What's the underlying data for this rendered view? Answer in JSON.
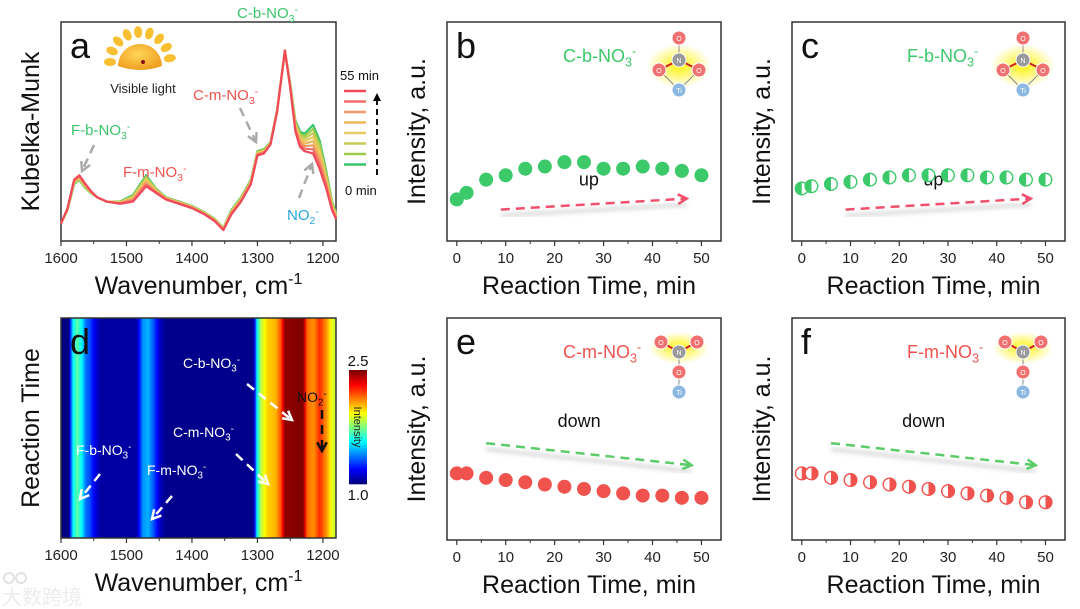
{
  "colors": {
    "green": "#3cc96a",
    "red": "#f0534e",
    "pink_arrow": "#f0506e",
    "blue_label": "#2aa5e0",
    "molecule_O": "#f07070",
    "molecule_N": "#9a9a9a",
    "molecule_Ti": "#8ab8e0",
    "glow": "#fff200"
  },
  "chart_data": [
    {
      "panel": "a",
      "type": "line",
      "letter": "a",
      "xlabel": {
        "text": "Wavenumber, cm",
        "sup": "-1"
      },
      "ylabel": "Kubelka-Munk",
      "xlim": [
        1600,
        1180
      ],
      "ylim": [
        0,
        1
      ],
      "xticks": [
        1600,
        1500,
        1400,
        1300,
        1200
      ],
      "inset_label": "Visible light",
      "legend": {
        "top": "55 min",
        "bottom": "0 min",
        "placement": "right",
        "series": [
          {
            "name": "55 min",
            "color": "#ef4a5a"
          },
          {
            "name": "",
            "color": "#f2706a"
          },
          {
            "name": "",
            "color": "#f29a62"
          },
          {
            "name": "",
            "color": "#f0b85a"
          },
          {
            "name": "",
            "color": "#e9cc60"
          },
          {
            "name": "",
            "color": "#c9cc55"
          },
          {
            "name": "",
            "color": "#9ccc4a"
          },
          {
            "name": "0 min",
            "color": "#3cc46a"
          }
        ]
      },
      "spectrum_0min": [
        [
          1600,
          0.08
        ],
        [
          1590,
          0.14
        ],
        [
          1580,
          0.26
        ],
        [
          1572,
          0.28
        ],
        [
          1565,
          0.25
        ],
        [
          1555,
          0.22
        ],
        [
          1545,
          0.2
        ],
        [
          1530,
          0.18
        ],
        [
          1510,
          0.18
        ],
        [
          1490,
          0.21
        ],
        [
          1470,
          0.3
        ],
        [
          1455,
          0.24
        ],
        [
          1440,
          0.2
        ],
        [
          1420,
          0.18
        ],
        [
          1400,
          0.16
        ],
        [
          1380,
          0.13
        ],
        [
          1365,
          0.1
        ],
        [
          1352,
          0.06
        ],
        [
          1340,
          0.14
        ],
        [
          1325,
          0.2
        ],
        [
          1310,
          0.28
        ],
        [
          1300,
          0.41
        ],
        [
          1290,
          0.42
        ],
        [
          1280,
          0.45
        ],
        [
          1270,
          0.6
        ],
        [
          1258,
          0.87
        ],
        [
          1250,
          0.72
        ],
        [
          1242,
          0.55
        ],
        [
          1235,
          0.5
        ],
        [
          1228,
          0.49
        ],
        [
          1215,
          0.53
        ],
        [
          1205,
          0.46
        ],
        [
          1195,
          0.32
        ],
        [
          1186,
          0.18
        ],
        [
          1180,
          0.13
        ]
      ],
      "spectrum_55min": [
        [
          1600,
          0.08
        ],
        [
          1590,
          0.15
        ],
        [
          1580,
          0.28
        ],
        [
          1572,
          0.3
        ],
        [
          1565,
          0.27
        ],
        [
          1555,
          0.23
        ],
        [
          1545,
          0.2
        ],
        [
          1530,
          0.18
        ],
        [
          1510,
          0.17
        ],
        [
          1490,
          0.18
        ],
        [
          1470,
          0.25
        ],
        [
          1455,
          0.22
        ],
        [
          1440,
          0.19
        ],
        [
          1420,
          0.17
        ],
        [
          1400,
          0.15
        ],
        [
          1380,
          0.12
        ],
        [
          1365,
          0.09
        ],
        [
          1352,
          0.05
        ],
        [
          1340,
          0.12
        ],
        [
          1325,
          0.18
        ],
        [
          1310,
          0.26
        ],
        [
          1300,
          0.39
        ],
        [
          1290,
          0.4
        ],
        [
          1280,
          0.44
        ],
        [
          1270,
          0.59
        ],
        [
          1258,
          0.87
        ],
        [
          1250,
          0.7
        ],
        [
          1242,
          0.5
        ],
        [
          1235,
          0.43
        ],
        [
          1228,
          0.41
        ],
        [
          1215,
          0.4
        ],
        [
          1205,
          0.33
        ],
        [
          1195,
          0.24
        ],
        [
          1186,
          0.14
        ],
        [
          1180,
          0.1
        ]
      ],
      "annotations": [
        {
          "label": {
            "base": "C-b-NO",
            "sub": "3",
            "sup": "-"
          },
          "color": "#3cc46a"
        },
        {
          "label": {
            "base": "C-m-NO",
            "sub": "3",
            "sup": "-"
          },
          "color": "#f0534e"
        },
        {
          "label": {
            "base": "F-b-NO",
            "sub": "3",
            "sup": "-"
          },
          "color": "#3cc46a"
        },
        {
          "label": {
            "base": "F-m-NO",
            "sub": "3",
            "sup": "-"
          },
          "color": "#f0534e"
        },
        {
          "label": {
            "base": "NO",
            "sub": "2",
            "sup": "-"
          },
          "color": "#2aa5e0"
        }
      ]
    },
    {
      "panel": "b",
      "type": "scatter",
      "letter": "b",
      "marker": "filled",
      "color": "#3cc96a",
      "species": {
        "base": "C-b-NO",
        "sub": "3",
        "sup": "-"
      },
      "trend": "up",
      "trend_color": "#f0506e",
      "molecule": "bidentate",
      "xlabel": "Reaction Time, min",
      "ylabel": "Intensity, a.u.",
      "xlim": [
        -2,
        54
      ],
      "ylim": [
        0,
        1
      ],
      "xticks": [
        0,
        10,
        20,
        30,
        40,
        50
      ],
      "x": [
        0,
        2,
        6,
        10,
        14,
        18,
        22,
        26,
        30,
        34,
        38,
        42,
        46,
        50
      ],
      "y": [
        0.19,
        0.22,
        0.28,
        0.3,
        0.33,
        0.34,
        0.36,
        0.36,
        0.33,
        0.33,
        0.34,
        0.33,
        0.32,
        0.3
      ]
    },
    {
      "panel": "c",
      "type": "scatter",
      "letter": "c",
      "marker": "half-left",
      "color": "#3cc96a",
      "species": {
        "base": "F-b-NO",
        "sub": "3",
        "sup": "-"
      },
      "trend": "up",
      "trend_color": "#f0506e",
      "molecule": "bidentate",
      "xlabel": "Reaction Time, min",
      "ylabel": "Intensity, a.u.",
      "xlim": [
        -2,
        54
      ],
      "ylim": [
        0,
        1
      ],
      "xticks": [
        0,
        10,
        20,
        30,
        40,
        50
      ],
      "x": [
        0,
        2,
        6,
        10,
        14,
        18,
        22,
        26,
        30,
        34,
        38,
        42,
        46,
        50
      ],
      "y": [
        0.24,
        0.25,
        0.26,
        0.27,
        0.28,
        0.29,
        0.3,
        0.3,
        0.3,
        0.3,
        0.29,
        0.29,
        0.28,
        0.28
      ]
    },
    {
      "panel": "d",
      "type": "heatmap",
      "letter": "d",
      "xlabel": {
        "text": "Wavenumber, cm",
        "sup": "-1"
      },
      "ylabel": "Reaction Time",
      "xlim": [
        1600,
        1180
      ],
      "xticks": [
        1600,
        1500,
        1400,
        1300,
        1200
      ],
      "colorbar": {
        "label": "Intensity",
        "min": 1.0,
        "max": 2.5,
        "min_label": "1.0",
        "max_label": "2.5",
        "colormap": "jet"
      },
      "intensity_profile": [
        [
          1600,
          1.0
        ],
        [
          1588,
          1.0
        ],
        [
          1582,
          1.55
        ],
        [
          1575,
          1.7
        ],
        [
          1568,
          1.55
        ],
        [
          1562,
          1.35
        ],
        [
          1556,
          1.3
        ],
        [
          1548,
          1.15
        ],
        [
          1540,
          1.05
        ],
        [
          1485,
          1.05
        ],
        [
          1475,
          1.4
        ],
        [
          1467,
          1.45
        ],
        [
          1458,
          1.3
        ],
        [
          1448,
          1.08
        ],
        [
          1440,
          1.02
        ],
        [
          1306,
          1.02
        ],
        [
          1300,
          1.6
        ],
        [
          1294,
          1.85
        ],
        [
          1285,
          2.0
        ],
        [
          1272,
          2.05
        ],
        [
          1264,
          2.2
        ],
        [
          1258,
          2.48
        ],
        [
          1230,
          2.5
        ],
        [
          1224,
          2.15
        ],
        [
          1214,
          2.1
        ],
        [
          1205,
          2.25
        ],
        [
          1195,
          2.1
        ],
        [
          1186,
          1.9
        ],
        [
          1180,
          1.85
        ]
      ],
      "annotations": [
        {
          "label": {
            "base": "C-b-NO",
            "sub": "3",
            "sup": "-"
          }
        },
        {
          "label": {
            "base": "C-m-NO",
            "sub": "3",
            "sup": "-"
          }
        },
        {
          "label": {
            "base": "F-b-NO",
            "sub": "3",
            "sup": "-"
          }
        },
        {
          "label": {
            "base": "F-m-NO",
            "sub": "3",
            "sup": "-"
          }
        },
        {
          "label": {
            "base": "NO",
            "sub": "2",
            "sup": "-"
          }
        }
      ]
    },
    {
      "panel": "e",
      "type": "scatter",
      "letter": "e",
      "marker": "filled",
      "color": "#f0534e",
      "species": {
        "base": "C-m-NO",
        "sub": "3",
        "sup": "-"
      },
      "trend": "down",
      "trend_color": "#5ccc6a",
      "molecule": "monodentate",
      "xlabel": "Reaction Time, min",
      "ylabel": "Intensity, a.u.",
      "xlim": [
        -2,
        54
      ],
      "ylim": [
        0,
        1
      ],
      "xticks": [
        0,
        10,
        20,
        30,
        40,
        50
      ],
      "x": [
        0,
        2,
        6,
        10,
        14,
        18,
        22,
        26,
        30,
        34,
        38,
        42,
        46,
        50
      ],
      "y": [
        0.3,
        0.3,
        0.28,
        0.27,
        0.26,
        0.25,
        0.24,
        0.23,
        0.22,
        0.21,
        0.2,
        0.2,
        0.19,
        0.19
      ]
    },
    {
      "panel": "f",
      "type": "scatter",
      "letter": "f",
      "marker": "half-right",
      "color": "#f0534e",
      "species": {
        "base": "F-m-NO",
        "sub": "3",
        "sup": "-"
      },
      "trend": "down",
      "trend_color": "#5ccc6a",
      "molecule": "monodentate",
      "xlabel": "Reaction Time, min",
      "ylabel": "Intensity, a.u.",
      "xlim": [
        -2,
        54
      ],
      "ylim": [
        0,
        1
      ],
      "xticks": [
        0,
        10,
        20,
        30,
        40,
        50
      ],
      "x": [
        0,
        2,
        6,
        10,
        14,
        18,
        22,
        26,
        30,
        34,
        38,
        42,
        46,
        50
      ],
      "y": [
        0.3,
        0.3,
        0.28,
        0.27,
        0.26,
        0.25,
        0.24,
        0.23,
        0.22,
        0.21,
        0.2,
        0.19,
        0.17,
        0.17
      ]
    }
  ],
  "molecule_atoms": {
    "O": "O",
    "N": "N",
    "Ti": "Ti"
  },
  "watermark": "大数跨境"
}
